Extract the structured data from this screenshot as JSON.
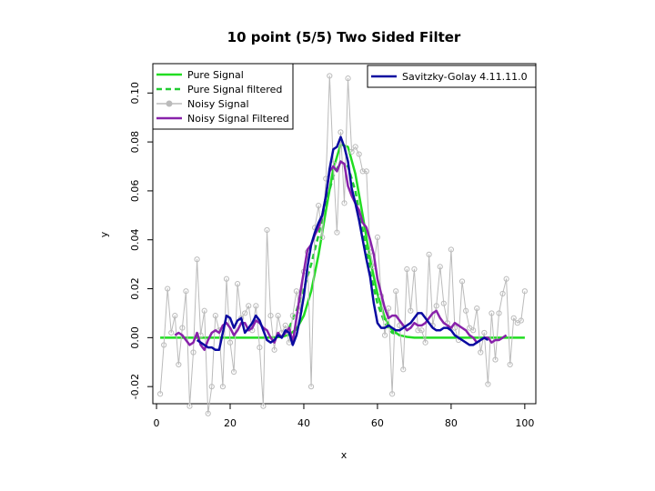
{
  "chart_data": {
    "type": "line",
    "title": "10 point (5/5) Two Sided Filter",
    "xlabel": "x",
    "ylabel": "y",
    "xlim": [
      -1,
      103
    ],
    "ylim": [
      -0.027,
      0.112
    ],
    "x_ticks": [
      0,
      20,
      40,
      60,
      80,
      100
    ],
    "y_ticks": [
      -0.02,
      0.0,
      0.02,
      0.04,
      0.06,
      0.08,
      0.1
    ],
    "x_tick_labels": [
      "0",
      "20",
      "40",
      "60",
      "80",
      "100"
    ],
    "y_tick_labels": [
      "-0.02",
      "0.00",
      "0.02",
      "0.04",
      "0.06",
      "0.08",
      "0.10"
    ],
    "grid": false,
    "legend_placement": "top-left",
    "legend2_placement": "top-right",
    "legend": [
      {
        "label": "Pure Signal",
        "color": "#22dd22",
        "style": "solid"
      },
      {
        "label": "Pure Signal filtered",
        "color": "#22cc33",
        "style": "dashed"
      },
      {
        "label": "Noisy Signal",
        "color": "#bbbbbb",
        "style": "points-lines"
      },
      {
        "label": "Noisy Signal Filtered",
        "color": "#8822aa",
        "style": "solid"
      }
    ],
    "legend2": [
      {
        "label": "Savitzky-Golay 4.11.11.0",
        "color": "#0a0aa0",
        "style": "solid"
      }
    ],
    "series": [
      {
        "name": "Pure Signal",
        "color": "#22dd22",
        "style": "solid",
        "x": [
          1,
          10,
          20,
          30,
          34,
          36,
          38,
          40,
          42,
          44,
          46,
          48,
          50,
          52,
          54,
          56,
          58,
          60,
          62,
          64,
          66,
          68,
          70,
          80,
          90,
          100
        ],
        "y": [
          0,
          0,
          0,
          0,
          0.0003,
          0.0012,
          0.0035,
          0.009,
          0.019,
          0.034,
          0.052,
          0.069,
          0.079,
          0.078,
          0.067,
          0.05,
          0.032,
          0.018,
          0.008,
          0.003,
          0.001,
          0.0003,
          0,
          0,
          0,
          0
        ]
      },
      {
        "name": "Pure Signal filtered",
        "color": "#22cc33",
        "style": "dashed",
        "x": [
          36,
          38,
          40,
          42,
          44,
          46,
          48,
          50,
          52,
          54,
          56,
          58,
          60,
          62,
          64,
          66
        ],
        "y": [
          0.004,
          0.011,
          0.02,
          0.03,
          0.042,
          0.055,
          0.066,
          0.072,
          0.07,
          0.06,
          0.044,
          0.027,
          0.014,
          0.006,
          0.002,
          0.001
        ]
      },
      {
        "name": "Noisy Signal",
        "color": "#bbbbbb",
        "style": "points-lines",
        "x": [
          1,
          2,
          3,
          4,
          5,
          6,
          7,
          8,
          9,
          10,
          11,
          12,
          13,
          14,
          15,
          16,
          17,
          18,
          19,
          20,
          21,
          22,
          23,
          24,
          25,
          26,
          27,
          28,
          29,
          30,
          31,
          32,
          33,
          34,
          35,
          36,
          37,
          38,
          39,
          40,
          41,
          42,
          43,
          44,
          45,
          46,
          47,
          48,
          49,
          50,
          51,
          52,
          53,
          54,
          55,
          56,
          57,
          58,
          59,
          60,
          61,
          62,
          63,
          64,
          65,
          66,
          67,
          68,
          69,
          70,
          71,
          72,
          73,
          74,
          75,
          76,
          77,
          78,
          79,
          80,
          81,
          82,
          83,
          84,
          85,
          86,
          87,
          88,
          89,
          90,
          91,
          92,
          93,
          94,
          95,
          96,
          97,
          98,
          99,
          100
        ],
        "y": [
          -0.023,
          -0.003,
          0.02,
          0.002,
          0.009,
          -0.011,
          0.004,
          0.019,
          -0.028,
          -0.006,
          0.032,
          0.001,
          0.011,
          -0.031,
          -0.02,
          0.009,
          0.003,
          -0.02,
          0.024,
          -0.002,
          -0.014,
          0.022,
          0.008,
          0.01,
          0.013,
          0.003,
          0.013,
          -0.004,
          -0.028,
          0.044,
          0.009,
          -0.005,
          0.009,
          0.002,
          0.005,
          -0.002,
          0.009,
          0.019,
          0.011,
          0.027,
          0.035,
          -0.02,
          0.045,
          0.054,
          0.041,
          0.065,
          0.107,
          0.071,
          0.043,
          0.084,
          0.055,
          0.106,
          0.076,
          0.078,
          0.075,
          0.068,
          0.068,
          0.035,
          0.029,
          0.041,
          0.017,
          0.001,
          0.012,
          -0.023,
          0.019,
          0.005,
          -0.013,
          0.028,
          0.011,
          0.028,
          0.003,
          0.003,
          -0.002,
          0.034,
          0.005,
          0.013,
          0.029,
          0.014,
          0.006,
          0.036,
          0.004,
          -0.001,
          0.023,
          0.011,
          0.004,
          0.003,
          0.012,
          -0.006,
          0.002,
          -0.019,
          0.01,
          -0.009,
          0.01,
          0.018,
          0.024,
          -0.011,
          0.008,
          0.006,
          0.007,
          0.019
        ]
      },
      {
        "name": "Noisy Signal Filtered",
        "color": "#8822aa",
        "style": "solid",
        "x": [
          5,
          6,
          7,
          8,
          9,
          10,
          11,
          12,
          13,
          14,
          15,
          16,
          17,
          18,
          19,
          20,
          21,
          22,
          23,
          24,
          25,
          26,
          27,
          28,
          29,
          30,
          31,
          32,
          33,
          34,
          35,
          36,
          37,
          38,
          39,
          40,
          41,
          42,
          43,
          44,
          45,
          46,
          47,
          48,
          49,
          50,
          51,
          52,
          53,
          54,
          55,
          56,
          57,
          58,
          59,
          60,
          61,
          62,
          63,
          64,
          65,
          66,
          67,
          68,
          69,
          70,
          71,
          72,
          73,
          74,
          75,
          76,
          77,
          78,
          79,
          80,
          81,
          82,
          83,
          84,
          85,
          86,
          87,
          88,
          89,
          90,
          91,
          92,
          93,
          94,
          95
        ],
        "y": [
          0.001,
          0.002,
          0.001,
          -0.001,
          -0.003,
          -0.002,
          0.002,
          -0.003,
          -0.005,
          -0.001,
          0.002,
          0.003,
          0.002,
          0.005,
          0.006,
          0.004,
          0.001,
          0.003,
          0.006,
          0.006,
          0.003,
          0.004,
          0.007,
          0.006,
          0.004,
          0.003,
          0.0,
          -0.002,
          0.002,
          0.0,
          0.002,
          0.004,
          -0.002,
          0.008,
          0.018,
          0.027,
          0.036,
          0.038,
          0.042,
          0.045,
          0.05,
          0.058,
          0.068,
          0.07,
          0.068,
          0.072,
          0.071,
          0.062,
          0.058,
          0.055,
          0.052,
          0.047,
          0.045,
          0.04,
          0.034,
          0.024,
          0.018,
          0.012,
          0.008,
          0.009,
          0.009,
          0.007,
          0.005,
          0.003,
          0.004,
          0.006,
          0.005,
          0.005,
          0.006,
          0.008,
          0.01,
          0.011,
          0.008,
          0.006,
          0.005,
          0.004,
          0.006,
          0.005,
          0.004,
          0.003,
          0.001,
          0.0,
          -0.002,
          -0.001,
          0.0,
          0.0,
          -0.002,
          -0.001,
          -0.001,
          0.0,
          0.001
        ]
      },
      {
        "name": "Savitzky-Golay 4.11.11.0",
        "color": "#0a0aa0",
        "style": "solid",
        "x": [
          11,
          12,
          13,
          14,
          15,
          16,
          17,
          18,
          19,
          20,
          21,
          22,
          23,
          24,
          25,
          26,
          27,
          28,
          29,
          30,
          31,
          32,
          33,
          34,
          35,
          36,
          37,
          38,
          39,
          40,
          41,
          42,
          43,
          44,
          45,
          46,
          47,
          48,
          49,
          50,
          51,
          52,
          53,
          54,
          55,
          56,
          57,
          58,
          59,
          60,
          61,
          62,
          63,
          64,
          65,
          66,
          67,
          68,
          69,
          70,
          71,
          72,
          73,
          74,
          75,
          76,
          77,
          78,
          79,
          80,
          81,
          82,
          83,
          84,
          85,
          86,
          87,
          88,
          89,
          90
        ],
        "y": [
          -0.001,
          -0.002,
          -0.003,
          -0.004,
          -0.004,
          -0.005,
          -0.005,
          0.002,
          0.009,
          0.008,
          0.004,
          0.007,
          0.008,
          0.002,
          0.004,
          0.006,
          0.009,
          0.007,
          0.003,
          -0.001,
          -0.002,
          -0.001,
          0.001,
          0.0,
          0.003,
          0.002,
          -0.003,
          0.001,
          0.008,
          0.017,
          0.029,
          0.038,
          0.043,
          0.047,
          0.05,
          0.058,
          0.069,
          0.077,
          0.078,
          0.082,
          0.078,
          0.072,
          0.061,
          0.055,
          0.048,
          0.04,
          0.032,
          0.025,
          0.014,
          0.006,
          0.004,
          0.004,
          0.005,
          0.004,
          0.003,
          0.003,
          0.004,
          0.005,
          0.006,
          0.008,
          0.01,
          0.01,
          0.008,
          0.006,
          0.004,
          0.003,
          0.003,
          0.004,
          0.004,
          0.003,
          0.001,
          0.0,
          -0.001,
          -0.002,
          -0.003,
          -0.003,
          -0.002,
          -0.001,
          0.0,
          -0.001
        ]
      }
    ]
  }
}
